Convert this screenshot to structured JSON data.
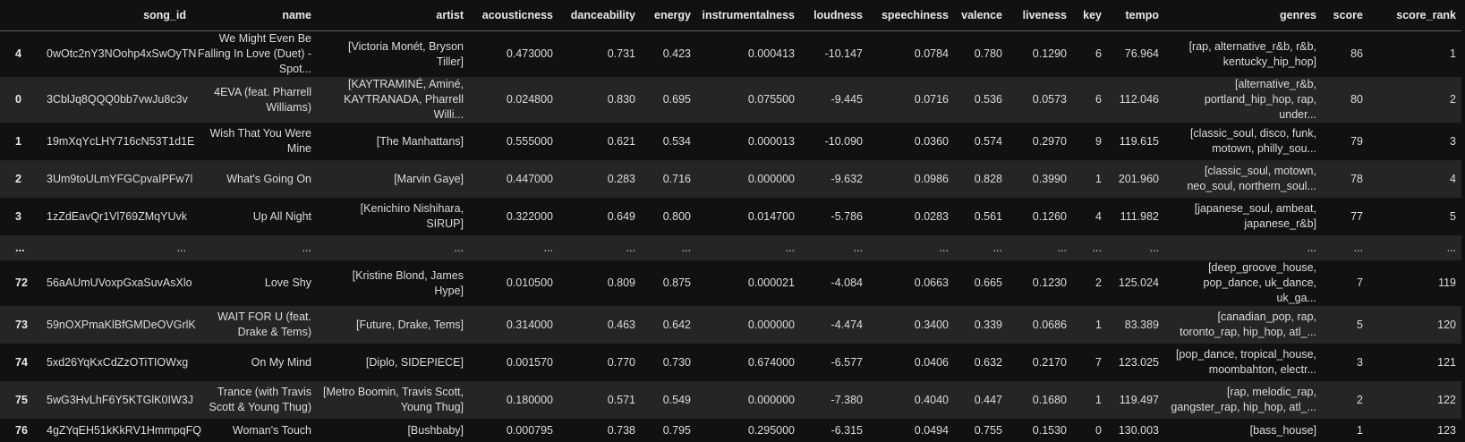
{
  "columns": [
    "",
    "song_id",
    "name",
    "artist",
    "acousticness",
    "danceability",
    "energy",
    "instrumentalness",
    "loudness",
    "speechiness",
    "valence",
    "liveness",
    "key",
    "tempo",
    "genres",
    "score",
    "score_rank"
  ],
  "rows": [
    {
      "cells": [
        "4",
        "0wOtc2nY3NOohp4xSwOyTN",
        "We Might Even Be Falling In Love (Duet) - Spot...",
        "[Victoria Monét, Bryson Tiller]",
        "0.473000",
        "0.731",
        "0.423",
        "0.000413",
        "-10.147",
        "0.0784",
        "0.780",
        "0.1290",
        "6",
        "76.964",
        "[rap, alternative_r&b, r&b, kentucky_hip_hop]",
        "86",
        "1"
      ],
      "type": "normal"
    },
    {
      "cells": [
        "0",
        "3CblJq8QQQ0bb7vwJu8c3v",
        "4EVA (feat. Pharrell Williams)",
        "[KAYTRAMINÉ, Aminé, KAYTRANADA, Pharrell Willi...",
        "0.024800",
        "0.830",
        "0.695",
        "0.075500",
        "-9.445",
        "0.0716",
        "0.536",
        "0.0573",
        "6",
        "112.046",
        "[alternative_r&b, portland_hip_hop, rap, under...",
        "80",
        "2"
      ],
      "type": "normal"
    },
    {
      "cells": [
        "1",
        "19mXqYcLHY716cN53T1d1E",
        "Wish That You Were Mine",
        "[The Manhattans]",
        "0.555000",
        "0.621",
        "0.534",
        "0.000013",
        "-10.090",
        "0.0360",
        "0.574",
        "0.2970",
        "9",
        "119.615",
        "[classic_soul, disco, funk, motown, philly_sou...",
        "79",
        "3"
      ],
      "type": "normal"
    },
    {
      "cells": [
        "2",
        "3Um9toULmYFGCpvaIPFw7l",
        "What's Going On",
        "[Marvin Gaye]",
        "0.447000",
        "0.283",
        "0.716",
        "0.000000",
        "-9.632",
        "0.0986",
        "0.828",
        "0.3990",
        "1",
        "201.960",
        "[classic_soul, motown, neo_soul, northern_soul...",
        "78",
        "4"
      ],
      "type": "normal"
    },
    {
      "cells": [
        "3",
        "1zZdEavQr1Vl769ZMqYUvk",
        "Up All Night",
        "[Kenichiro Nishihara, SIRUP]",
        "0.322000",
        "0.649",
        "0.800",
        "0.014700",
        "-5.786",
        "0.0283",
        "0.561",
        "0.1260",
        "4",
        "111.982",
        "[japanese_soul, ambeat, japanese_r&b]",
        "77",
        "5"
      ],
      "type": "normal"
    },
    {
      "cells": [
        "...",
        "...",
        "...",
        "...",
        "...",
        "...",
        "...",
        "...",
        "...",
        "...",
        "...",
        "...",
        "...",
        "...",
        "...",
        "...",
        "..."
      ],
      "type": "ellipsis"
    },
    {
      "cells": [
        "72",
        "56aAUmUVoxpGxaSuvAsXlo",
        "Love Shy",
        "[Kristine Blond, James Hype]",
        "0.010500",
        "0.809",
        "0.875",
        "0.000021",
        "-4.084",
        "0.0663",
        "0.665",
        "0.1230",
        "2",
        "125.024",
        "[deep_groove_house, pop_dance, uk_dance, uk_ga...",
        "7",
        "119"
      ],
      "type": "normal"
    },
    {
      "cells": [
        "73",
        "59nOXPmaKlBfGMDeOVGrlK",
        "WAIT FOR U (feat. Drake & Tems)",
        "[Future, Drake, Tems]",
        "0.314000",
        "0.463",
        "0.642",
        "0.000000",
        "-4.474",
        "0.3400",
        "0.339",
        "0.0686",
        "1",
        "83.389",
        "[canadian_pop, rap, toronto_rap, hip_hop, atl_...",
        "5",
        "120"
      ],
      "type": "normal"
    },
    {
      "cells": [
        "74",
        "5xd26YqKxCdZzOTiTIOWxg",
        "On My Mind",
        "[Diplo, SIDEPIECE]",
        "0.001570",
        "0.770",
        "0.730",
        "0.674000",
        "-6.577",
        "0.0406",
        "0.632",
        "0.2170",
        "7",
        "123.025",
        "[pop_dance, tropical_house, moombahton, electr...",
        "3",
        "121"
      ],
      "type": "normal"
    },
    {
      "cells": [
        "75",
        "5wG3HvLhF6Y5KTGlK0IW3J",
        "Trance (with Travis Scott & Young Thug)",
        "[Metro Boomin, Travis Scott, Young Thug]",
        "0.180000",
        "0.571",
        "0.549",
        "0.000000",
        "-7.380",
        "0.4040",
        "0.447",
        "0.1680",
        "1",
        "119.497",
        "[rap, melodic_rap, gangster_rap, hip_hop, atl_...",
        "2",
        "122"
      ],
      "type": "normal"
    },
    {
      "cells": [
        "76",
        "4gZYqEH51kKkRV1HmmpqFQ",
        "Woman's Touch",
        "[Bushbaby]",
        "0.000795",
        "0.738",
        "0.795",
        "0.295000",
        "-6.315",
        "0.0494",
        "0.755",
        "0.1530",
        "0",
        "130.003",
        "[bass_house]",
        "1",
        "123"
      ],
      "type": "single"
    }
  ]
}
